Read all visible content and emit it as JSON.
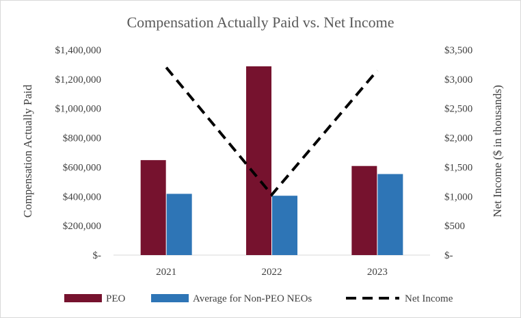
{
  "chart_data": {
    "type": "bar",
    "title": "Compensation Actually Paid vs. Net Income",
    "categories": [
      "2021",
      "2022",
      "2023"
    ],
    "series": [
      {
        "name": "PEO",
        "axis": "left",
        "kind": "bar",
        "color": "#76122e",
        "values": [
          648000,
          1288000,
          608000
        ]
      },
      {
        "name": "Average for Non-PEO NEOs",
        "axis": "left",
        "kind": "bar",
        "color": "#2e75b6",
        "values": [
          418000,
          405000,
          553000
        ]
      },
      {
        "name": "Net Income",
        "axis": "right",
        "kind": "line",
        "color": "#000000",
        "style": "dashed",
        "values": [
          3200,
          1030,
          3150
        ]
      }
    ],
    "ylabel": "Compensation Actually Paid",
    "y2label": "Net Income ($ in thousands)",
    "ylim": [
      0,
      1400000
    ],
    "y2lim": [
      0,
      3500
    ],
    "yticks": [
      "$-",
      "$200,000",
      "$400,000",
      "$600,000",
      "$800,000",
      "$1,000,000",
      "$1,200,000",
      "$1,400,000"
    ],
    "y2ticks": [
      "$-",
      "$500",
      "$1,000",
      "$1,500",
      "$2,000",
      "$2,500",
      "$3,000",
      "$3,500"
    ],
    "legend_position": "bottom",
    "grid": false
  }
}
